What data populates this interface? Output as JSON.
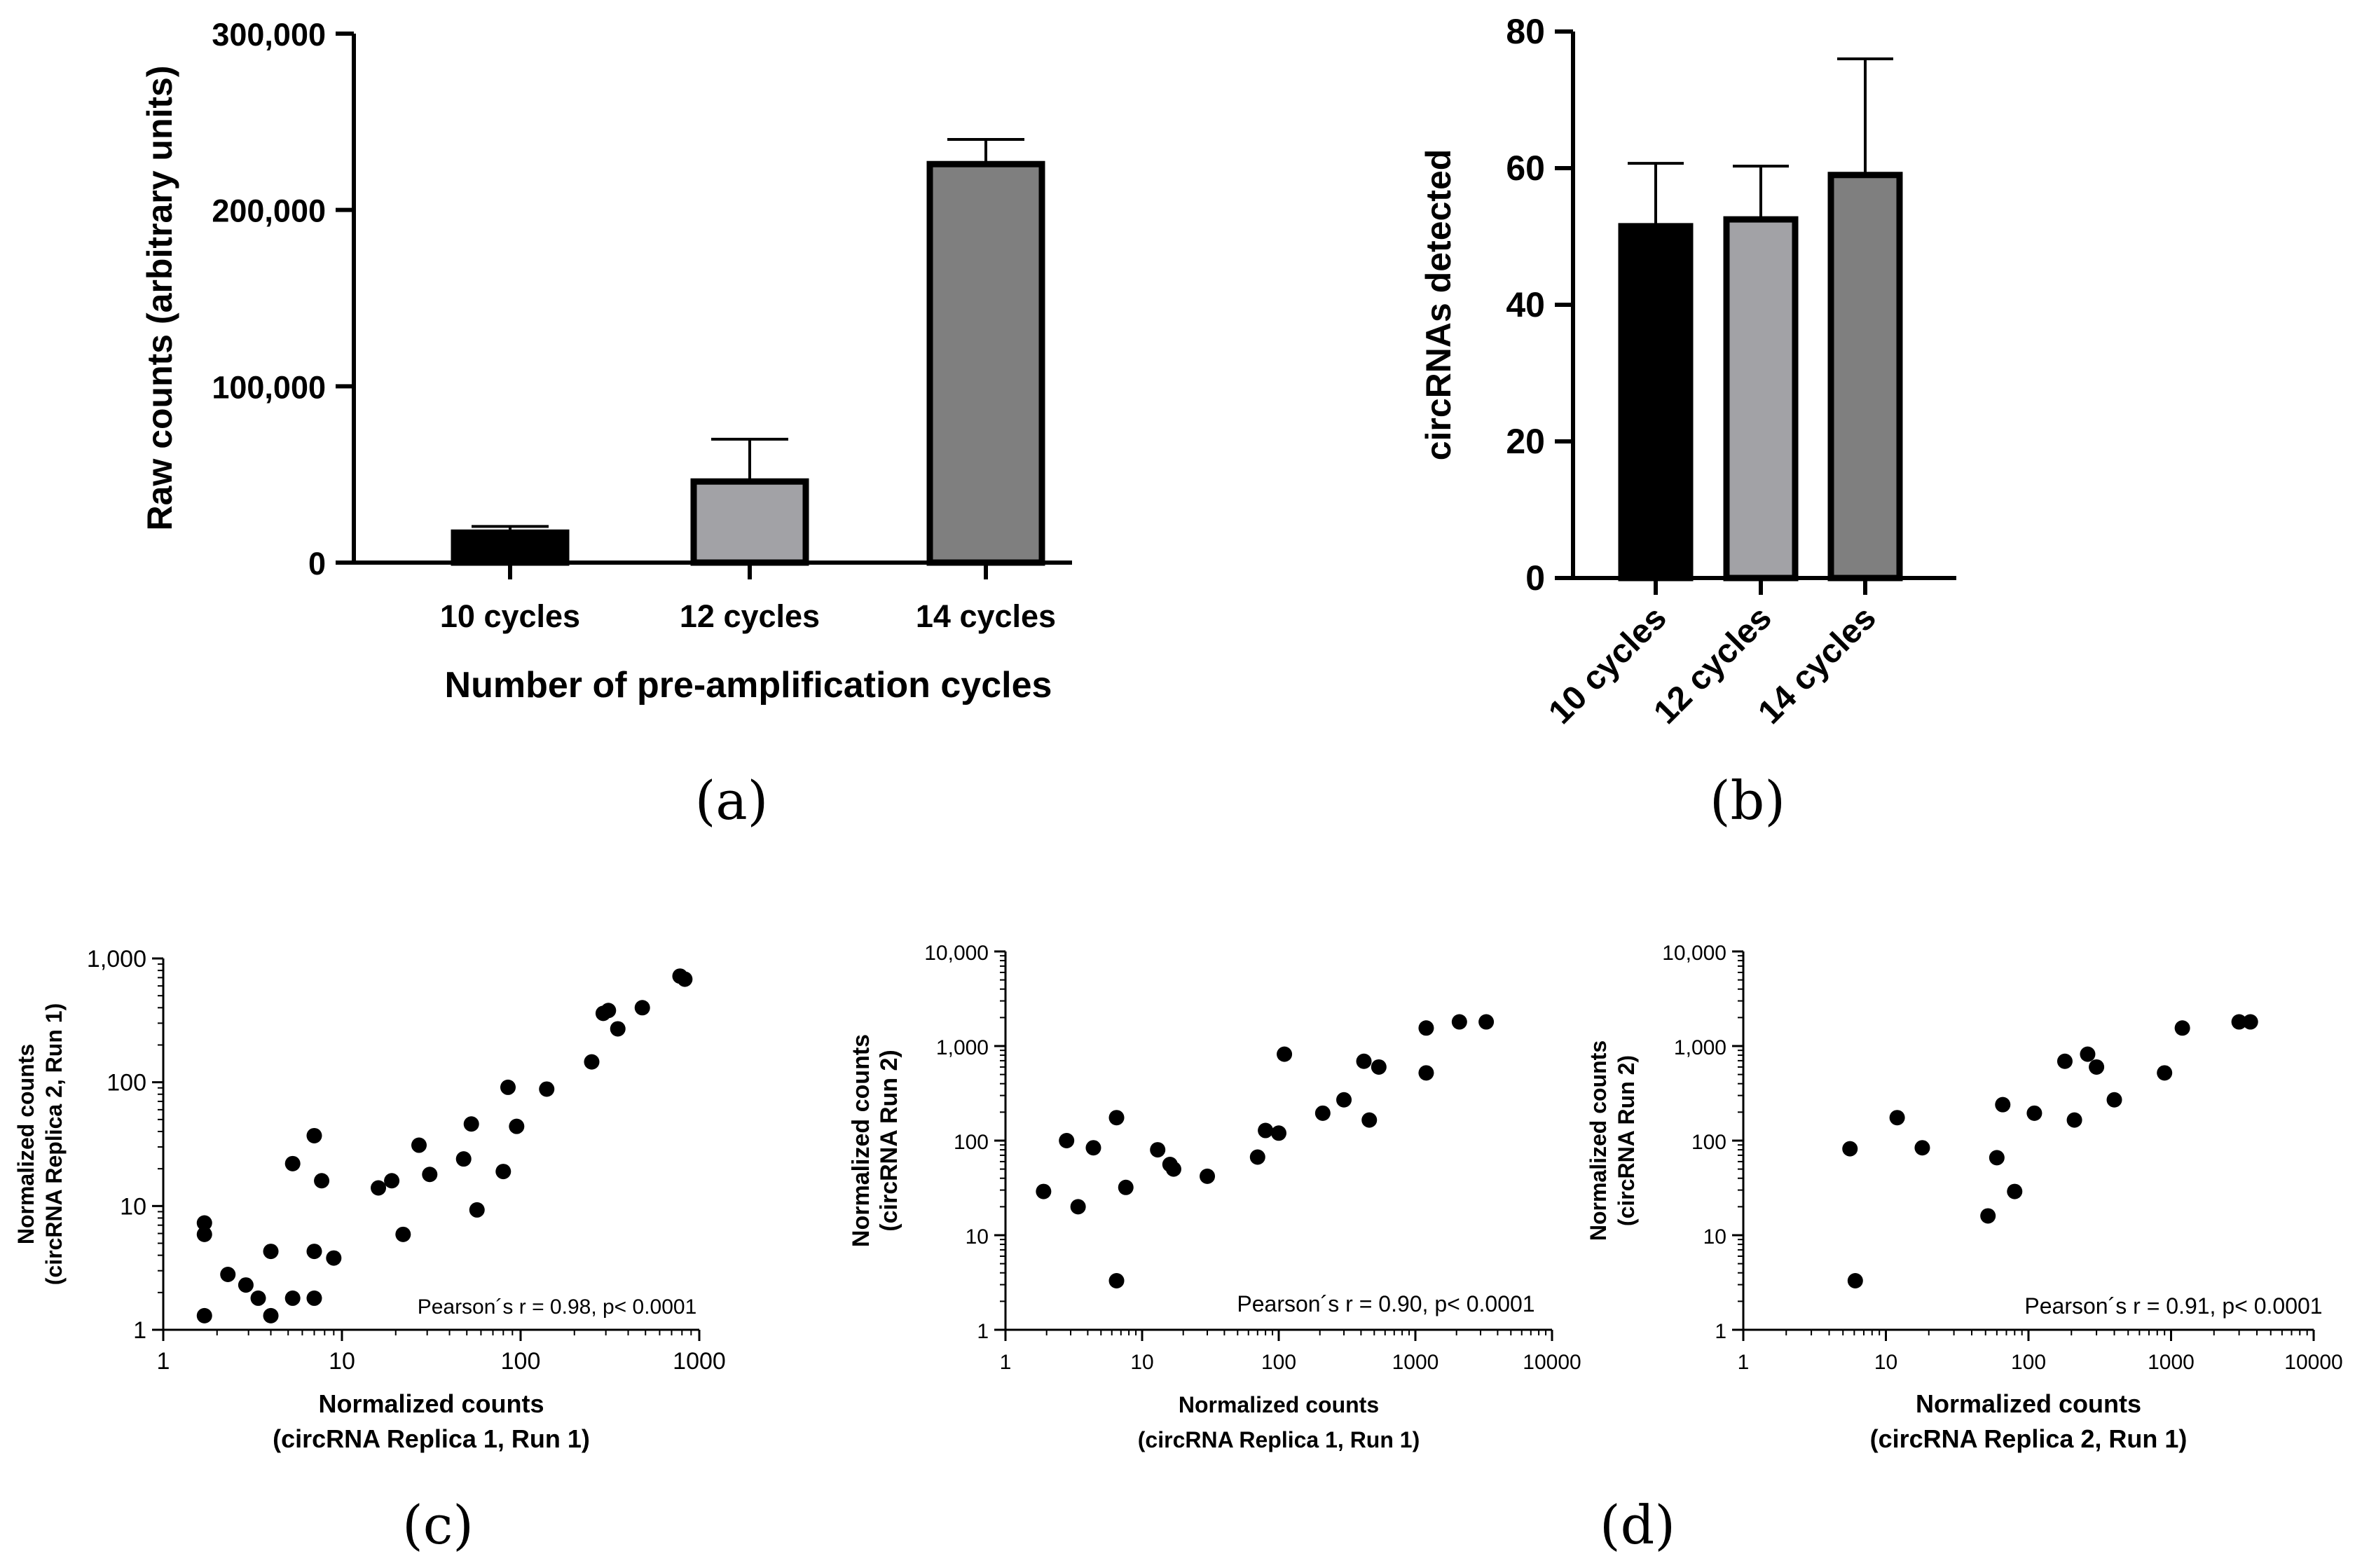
{
  "panels": [
    {
      "id": "a",
      "label": "(a)"
    },
    {
      "id": "b",
      "label": "(b)"
    },
    {
      "id": "c",
      "label": "(c)"
    },
    {
      "id": "d",
      "label": "(d)"
    }
  ],
  "chart_data": [
    {
      "id": "a",
      "type": "bar",
      "categories": [
        "10 cycles",
        "12 cycles",
        "14 cycles"
      ],
      "values": [
        17000,
        46000,
        226000
      ],
      "errors": [
        20500,
        70000,
        240000
      ],
      "colors": [
        "#000000",
        "#a2a2a6",
        "#7f7f7f"
      ],
      "ylim": [
        0,
        300000
      ],
      "yticks": [
        0,
        100000,
        200000,
        300000
      ],
      "ytick_labels": [
        "0",
        "100,000",
        "200,000",
        "300,000"
      ],
      "ylabel": "Raw counts (arbitrary units)",
      "xlabel": "Number of pre-amplification cycles"
    },
    {
      "id": "b",
      "type": "bar",
      "categories": [
        "10 cycles",
        "12 cycles",
        "14 cycles"
      ],
      "values": [
        51.5,
        52.5,
        59
      ],
      "errors": [
        60.7,
        60.3,
        76
      ],
      "colors": [
        "#000000",
        "#a2a2a6",
        "#7f7f7f"
      ],
      "ylim": [
        0,
        80
      ],
      "yticks": [
        0,
        20,
        40,
        60,
        80
      ],
      "ytick_labels": [
        "0",
        "20",
        "40",
        "60",
        "80"
      ],
      "ylabel": "circRNAs detected",
      "xlabel": ""
    },
    {
      "id": "c",
      "type": "scatter",
      "xscale": "log",
      "yscale": "log",
      "xlim": [
        1,
        1000
      ],
      "ylim": [
        1,
        1000
      ],
      "xticks": [
        1,
        10,
        100,
        1000
      ],
      "xtick_labels": [
        "1",
        "10",
        "100",
        "1000"
      ],
      "yticks": [
        1,
        10,
        100,
        1000
      ],
      "ytick_labels": [
        "1",
        "10",
        "100",
        "1,000"
      ],
      "xlabel": [
        "Normalized counts",
        "(circRNA Replica 1, Run 1)"
      ],
      "ylabel": [
        "Normalized counts",
        "(circRNA Replica 2, Run 1)"
      ],
      "annotation": "Pearson´s r = 0.98, p< 0.0001",
      "points": [
        [
          1.7,
          7.3
        ],
        [
          1.7,
          5.9
        ],
        [
          1.7,
          1.3
        ],
        [
          2.3,
          2.8
        ],
        [
          2.9,
          2.3
        ],
        [
          3.4,
          1.8
        ],
        [
          4,
          4.3
        ],
        [
          4,
          1.3
        ],
        [
          5.3,
          22
        ],
        [
          5.3,
          1.8
        ],
        [
          7,
          37
        ],
        [
          7,
          4.3
        ],
        [
          7,
          1.8
        ],
        [
          7.7,
          16
        ],
        [
          9,
          3.8
        ],
        [
          16,
          14
        ],
        [
          19,
          16
        ],
        [
          22,
          5.9
        ],
        [
          27,
          31
        ],
        [
          31,
          18
        ],
        [
          48,
          24
        ],
        [
          53,
          46
        ],
        [
          57,
          9.3
        ],
        [
          80,
          19
        ],
        [
          85,
          91
        ],
        [
          95,
          44
        ],
        [
          140,
          88
        ],
        [
          250,
          146
        ],
        [
          290,
          360
        ],
        [
          310,
          380
        ],
        [
          350,
          270
        ],
        [
          480,
          400
        ],
        [
          780,
          720
        ],
        [
          830,
          680
        ]
      ]
    },
    {
      "id": "d1",
      "type": "scatter",
      "xscale": "log",
      "yscale": "log",
      "xlim": [
        1,
        10000
      ],
      "ylim": [
        1,
        10000
      ],
      "xticks": [
        1,
        10,
        100,
        1000,
        10000
      ],
      "xtick_labels": [
        "1",
        "10",
        "100",
        "1000",
        "10000"
      ],
      "yticks": [
        1,
        10,
        100,
        1000,
        10000
      ],
      "ytick_labels": [
        "1",
        "10",
        "100",
        "1,000",
        "10,000"
      ],
      "xlabel": [
        "Normalized counts",
        "(circRNA Replica 1, Run 1)"
      ],
      "ylabel": [
        "Normalized counts",
        "(circRNA Run 2)"
      ],
      "annotation": "Pearson´s r = 0.90, p< 0.0001",
      "points": [
        [
          1.9,
          29
        ],
        [
          2.8,
          100
        ],
        [
          3.4,
          20
        ],
        [
          4.4,
          84
        ],
        [
          6.5,
          175
        ],
        [
          6.5,
          3.3
        ],
        [
          7.6,
          32
        ],
        [
          13,
          80
        ],
        [
          16,
          56
        ],
        [
          17,
          50
        ],
        [
          30,
          42
        ],
        [
          70,
          67
        ],
        [
          80,
          128
        ],
        [
          100,
          120
        ],
        [
          110,
          820
        ],
        [
          210,
          195
        ],
        [
          300,
          270
        ],
        [
          420,
          690
        ],
        [
          460,
          165
        ],
        [
          540,
          600
        ],
        [
          1200,
          1550
        ],
        [
          1200,
          520
        ],
        [
          2100,
          1800
        ],
        [
          3300,
          1800
        ]
      ]
    },
    {
      "id": "d2",
      "type": "scatter",
      "xscale": "log",
      "yscale": "log",
      "xlim": [
        1,
        10000
      ],
      "ylim": [
        1,
        10000
      ],
      "xticks": [
        1,
        10,
        100,
        1000,
        10000
      ],
      "xtick_labels": [
        "1",
        "10",
        "100",
        "1000",
        "10000"
      ],
      "yticks": [
        1,
        10,
        100,
        1000,
        10000
      ],
      "ytick_labels": [
        "1",
        "10",
        "100",
        "1,000",
        "10,000"
      ],
      "xlabel": [
        "Normalized counts",
        "(circRNA Replica 2, Run 1)"
      ],
      "ylabel": [
        "Normalized counts",
        "(circRNA Run 2)"
      ],
      "annotation": "Pearson´s r = 0.91, p< 0.0001",
      "points": [
        [
          5.6,
          82
        ],
        [
          6.1,
          3.3
        ],
        [
          12,
          175
        ],
        [
          18,
          84
        ],
        [
          52,
          16
        ],
        [
          60,
          66
        ],
        [
          66,
          240
        ],
        [
          80,
          29
        ],
        [
          110,
          195
        ],
        [
          180,
          690
        ],
        [
          210,
          165
        ],
        [
          260,
          820
        ],
        [
          300,
          600
        ],
        [
          400,
          270
        ],
        [
          900,
          520
        ],
        [
          1200,
          1550
        ],
        [
          3000,
          1800
        ],
        [
          3600,
          1800
        ]
      ]
    }
  ]
}
